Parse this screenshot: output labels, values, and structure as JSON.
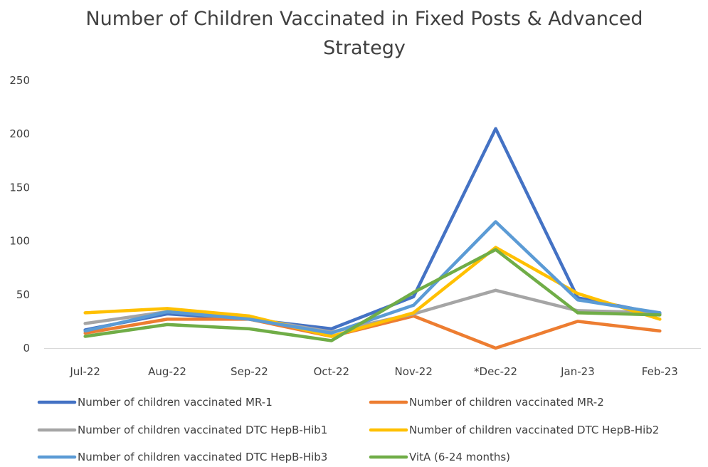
{
  "chart_data": {
    "type": "line",
    "title_lines": [
      "Number of Children Vaccinated in Fixed Posts & Advanced",
      "Strategy"
    ],
    "categories": [
      "Jul-22",
      "Aug-22",
      "Sep-22",
      "Oct-22",
      "Nov-22",
      "*Dec-22",
      "Jan-23",
      "Feb-23"
    ],
    "y_ticks": [
      "0",
      "50",
      "100",
      "150",
      "200",
      "250"
    ],
    "ylim": [
      0,
      250
    ],
    "grid": false,
    "legend_position": "bottom",
    "series": [
      {
        "name": "Number of children vaccinated MR-1",
        "color": "#4472C4",
        "values": [
          17,
          32,
          27,
          18,
          48,
          205,
          47,
          32
        ]
      },
      {
        "name": "Number of children vaccinated MR-2",
        "color": "#ED7D31",
        "values": [
          14,
          27,
          27,
          11,
          30,
          0,
          25,
          16
        ]
      },
      {
        "name": "Number of children vaccinated DTC HepB-Hib1",
        "color": "#A5A5A5",
        "values": [
          23,
          34,
          28,
          15,
          32,
          54,
          35,
          33
        ]
      },
      {
        "name": "Number of children vaccinated DTC HepB-Hib2",
        "color": "#FFC000",
        "values": [
          33,
          37,
          30,
          11,
          33,
          94,
          51,
          27
        ]
      },
      {
        "name": "Number of children vaccinated DTC HepB-Hib3",
        "color": "#5B9BD5",
        "values": [
          16,
          34,
          27,
          14,
          40,
          118,
          45,
          33
        ]
      },
      {
        "name": "VitA (6-24 months)",
        "color": "#70AD47",
        "values": [
          11,
          22,
          18,
          7,
          52,
          92,
          33,
          31
        ]
      }
    ]
  }
}
